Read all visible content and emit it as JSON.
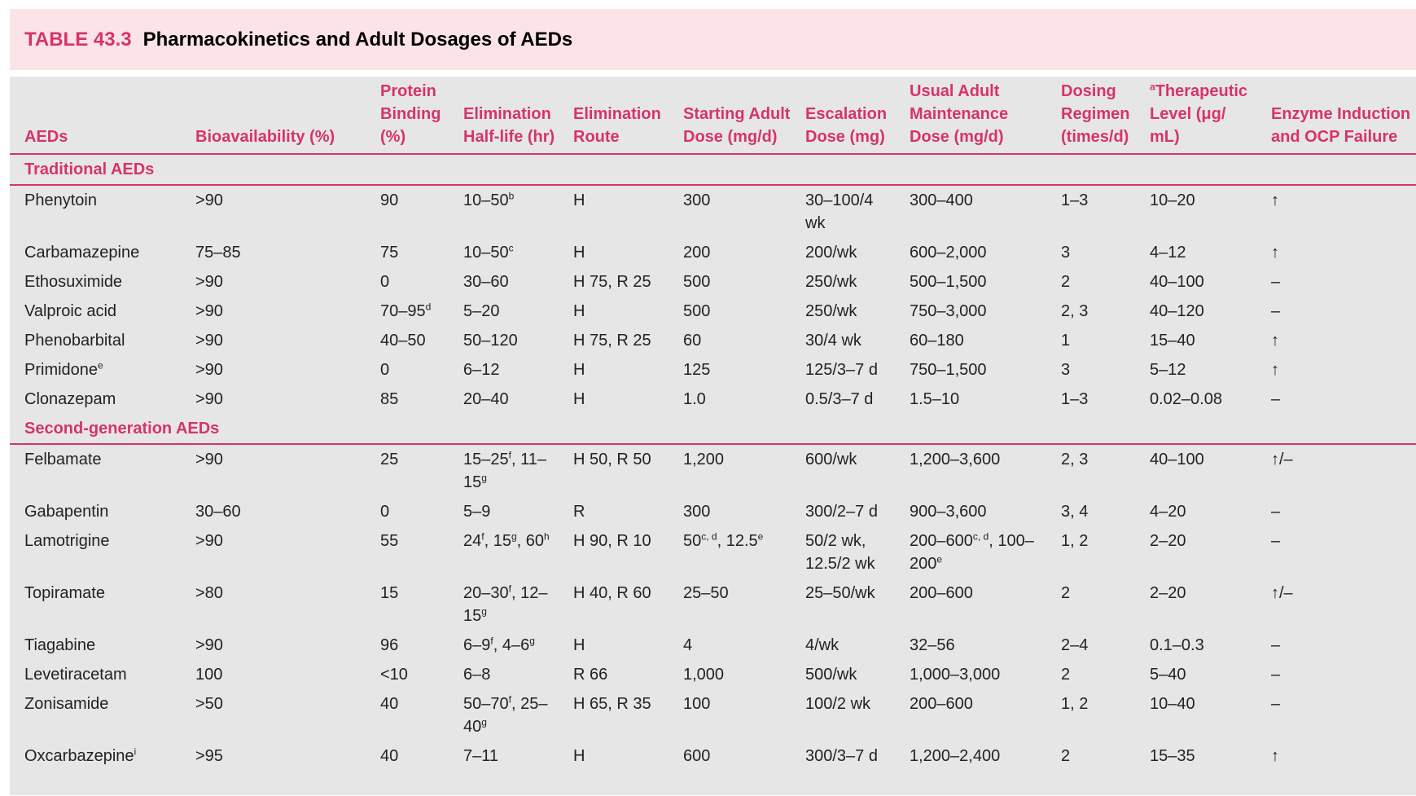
{
  "header": {
    "label": "TABLE 43.3",
    "title": "Pharmacokinetics and Adult Dosages of AEDs"
  },
  "table": {
    "columns": [
      "AEDs",
      "Bioavailability (%)",
      "Protein Binding (%)",
      "Elimination Half-life (hr)",
      "Elimination Route",
      "Starting Adult Dose (mg/d)",
      "Escalation Dose (mg)",
      "Usual Adult Maintenance Dose (mg/d)",
      "Dosing Regimen (times/d)",
      [
        {
          "sup": "a"
        },
        "Therapeutic Level (μg/ mL)"
      ],
      "Enzyme Induction and OCP Failure"
    ],
    "sections": [
      {
        "title": "Traditional AEDs",
        "rows": [
          [
            "Phenytoin",
            ">90",
            "90",
            [
              "10–50",
              {
                "sup": "b"
              }
            ],
            "H",
            "300",
            "30–100/4 wk",
            "300–400",
            "1–3",
            "10–20",
            "↑"
          ],
          [
            "Carbamazepine",
            "75–85",
            "75",
            [
              "10–50",
              {
                "sup": "c"
              }
            ],
            "H",
            "200",
            "200/wk",
            "600–2,000",
            "3",
            "4–12",
            "↑"
          ],
          [
            "Ethosuximide",
            ">90",
            "0",
            "30–60",
            "H 75, R 25",
            "500",
            "250/wk",
            "500–1,500",
            "2",
            "40–100",
            "–"
          ],
          [
            "Valproic acid",
            ">90",
            [
              "70–95",
              {
                "sup": "d"
              }
            ],
            "5–20",
            "H",
            "500",
            "250/wk",
            "750–3,000",
            "2, 3",
            "40–120",
            "–"
          ],
          [
            "Phenobarbital",
            ">90",
            "40–50",
            "50–120",
            "H 75, R 25",
            "60",
            "30/4 wk",
            "60–180",
            "1",
            "15–40",
            "↑"
          ],
          [
            [
              "Primidone",
              {
                "sup": "e"
              }
            ],
            ">90",
            "0",
            "6–12",
            "H",
            "125",
            "125/3–7 d",
            "750–1,500",
            "3",
            "5–12",
            "↑"
          ],
          [
            "Clonazepam",
            ">90",
            "85",
            "20–40",
            "H",
            "1.0",
            "0.5/3–7 d",
            "1.5–10",
            "1–3",
            "0.02–0.08",
            "–"
          ]
        ]
      },
      {
        "title": "Second-generation AEDs",
        "rows": [
          [
            "Felbamate",
            ">90",
            "25",
            [
              "15–25",
              {
                "sup": "f"
              },
              ", 11–15",
              {
                "sup": "g"
              }
            ],
            "H 50, R 50",
            "1,200",
            "600/wk",
            "1,200–3,600",
            "2, 3",
            "40–100",
            "↑/–"
          ],
          [
            "Gabapentin",
            "30–60",
            "0",
            "5–9",
            "R",
            "300",
            "300/2–7 d",
            "900–3,600",
            "3, 4",
            "4–20",
            "–"
          ],
          [
            "Lamotrigine",
            ">90",
            "55",
            [
              "24",
              {
                "sup": "f"
              },
              ", 15",
              {
                "sup": "g"
              },
              ", 60",
              {
                "sup": "h"
              }
            ],
            "H 90, R 10",
            [
              "50",
              {
                "sup": "c, d"
              },
              ", 12.5",
              {
                "sup": "e"
              }
            ],
            "50/2 wk, 12.5/2 wk",
            [
              "200–600",
              {
                "sup": "c, d"
              },
              ", 100–200",
              {
                "sup": "e"
              }
            ],
            "1, 2",
            "2–20",
            "–"
          ],
          [
            "Topiramate",
            ">80",
            "15",
            [
              "20–30",
              {
                "sup": "f"
              },
              ", 12–15",
              {
                "sup": "g"
              }
            ],
            "H 40, R 60",
            "25–50",
            "25–50/wk",
            "200–600",
            "2",
            "2–20",
            "↑/–"
          ],
          [
            "Tiagabine",
            ">90",
            "96",
            [
              "6–9",
              {
                "sup": "f"
              },
              ", 4–6",
              {
                "sup": "g"
              }
            ],
            "H",
            "4",
            "4/wk",
            "32–56",
            "2–4",
            "0.1–0.3",
            "–"
          ],
          [
            "Levetiracetam",
            "100",
            "<10",
            "6–8",
            "R 66",
            "1,000",
            "500/wk",
            "1,000–3,000",
            "2",
            "5–40",
            "–"
          ],
          [
            "Zonisamide",
            ">50",
            "40",
            [
              "50–70",
              {
                "sup": "f"
              },
              ", 25–40",
              {
                "sup": "g"
              }
            ],
            "H 65, R 35",
            "100",
            "100/2 wk",
            "200–600",
            "1, 2",
            "10–40",
            "–"
          ],
          [
            [
              "Oxcarbazepine",
              {
                "sup": "i"
              }
            ],
            ">95",
            "40",
            "7–11",
            "H",
            "600",
            "300/3–7 d",
            "1,200–2,400",
            "2",
            "15–35",
            "↑"
          ]
        ]
      }
    ]
  }
}
